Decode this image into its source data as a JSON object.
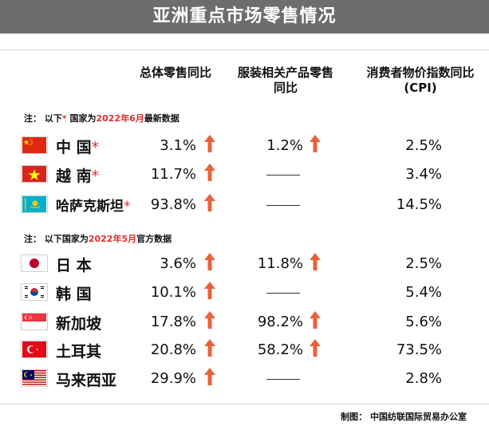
{
  "title": "亚洲重点市场零售情况",
  "columns": {
    "col1": "总体零售同比",
    "col2_line1": "服装相关产品零售",
    "col2_line2": "同比",
    "col3_line1": "消费者物价指数同比",
    "col3_line2": "(CPI)"
  },
  "notes": {
    "note1": {
      "prefix": "注：  以下",
      "asterisk": "*",
      "mid": " 国家为",
      "date": "2022年6月",
      "suffix": "最新数据"
    },
    "note2": {
      "prefix": "注：  以下国家为",
      "date": "2022年5月",
      "suffix": "官方数据"
    }
  },
  "colors": {
    "banner": "#6d6d6d",
    "accent_red": "#e0302a",
    "arrow": "#e8633b"
  },
  "countries": [
    {
      "name": "中 国",
      "asterisk": "*",
      "flag": "china-flag-icon",
      "total_yoy": "3.1%",
      "apparel_yoy": "1.2%",
      "cpi": "2.5%"
    },
    {
      "name": "越 南",
      "asterisk": "*",
      "flag": "vietnam-flag-icon",
      "total_yoy": "11.7%",
      "apparel_yoy": "——",
      "cpi": "3.4%"
    },
    {
      "name": "哈萨克斯坦",
      "asterisk": "*",
      "flag": "kazakhstan-flag-icon",
      "total_yoy": "93.8%",
      "apparel_yoy": "——",
      "cpi": "14.5%"
    },
    {
      "name": "日 本",
      "asterisk": "",
      "flag": "japan-flag-icon",
      "total_yoy": "3.6%",
      "apparel_yoy": "11.8%",
      "cpi": "2.5%"
    },
    {
      "name": "韩 国",
      "asterisk": "",
      "flag": "korea-flag-icon",
      "total_yoy": "10.1%",
      "apparel_yoy": "——",
      "cpi": "5.4%"
    },
    {
      "name": "新加坡",
      "asterisk": "",
      "flag": "singapore-flag-icon",
      "total_yoy": "17.8%",
      "apparel_yoy": "98.2%",
      "cpi": "5.6%"
    },
    {
      "name": "土耳其",
      "asterisk": "",
      "flag": "turkey-flag-icon",
      "total_yoy": "20.8%",
      "apparel_yoy": "58.2%",
      "cpi": "73.5%"
    },
    {
      "name": "马来西亚",
      "asterisk": "",
      "flag": "malaysia-flag-icon",
      "total_yoy": "29.9%",
      "apparel_yoy": "——",
      "cpi": "2.8%"
    }
  ],
  "footer": "制图：  中国纺联国际贸易办公室"
}
